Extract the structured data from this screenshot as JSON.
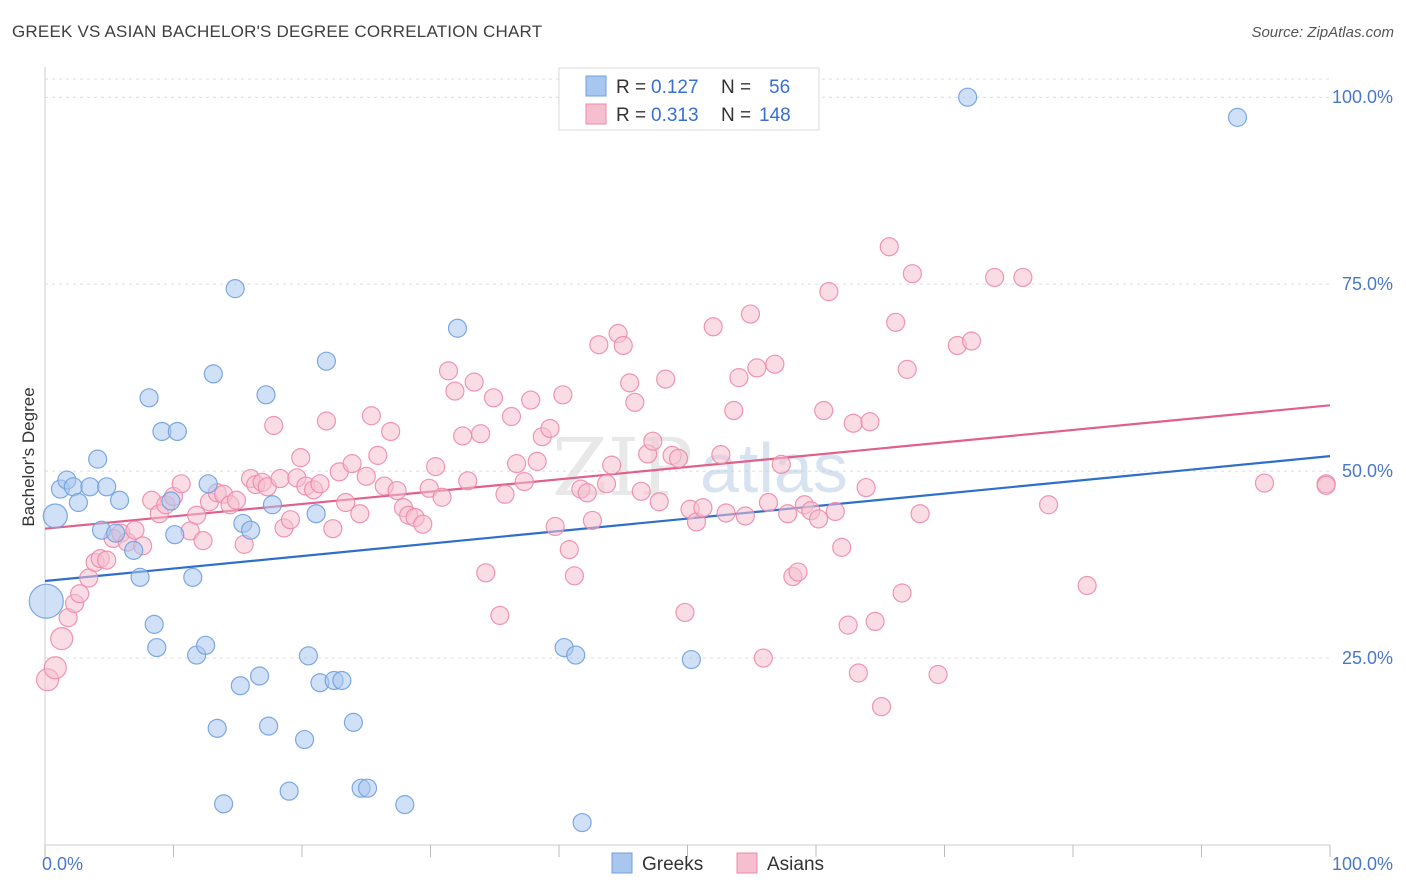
{
  "title": "GREEK VS ASIAN BACHELOR'S DEGREE CORRELATION CHART",
  "source": "Source: ZipAtlas.com",
  "watermark": {
    "zip": "ZIP",
    "atlas": "atlas"
  },
  "chart_data": {
    "type": "scatter",
    "title": "GREEK VS ASIAN BACHELOR'S DEGREE CORRELATION CHART",
    "xlabel": "",
    "ylabel": "Bachelor's Degree",
    "xlim": [
      0,
      100
    ],
    "ylim": [
      0,
      100
    ],
    "x_tick_labels": [
      "0.0%",
      "100.0%"
    ],
    "y_ticks": [
      25,
      50,
      75,
      100
    ],
    "y_tick_labels": [
      "25.0%",
      "50.0%",
      "75.0%",
      "100.0%"
    ],
    "grid": true,
    "legend_placement": "top-center",
    "legend": [
      {
        "r_label": "R =",
        "r_value": "0.127",
        "n_label": "N =",
        "n_value": "56"
      },
      {
        "r_label": "R =",
        "r_value": "0.313",
        "n_label": "N =",
        "n_value": "148"
      }
    ],
    "series": [
      {
        "name": "Greeks",
        "color": "#6fa0e0",
        "fill": "#a9c6ef",
        "line_color": "#2f6fcc",
        "trend": [
          [
            0,
            35.3
          ],
          [
            100,
            52.0
          ]
        ],
        "points": [
          [
            0.1,
            32.6
          ],
          [
            0.8,
            44.0
          ],
          [
            1.2,
            47.6
          ],
          [
            1.7,
            48.8
          ],
          [
            2.2,
            47.9
          ],
          [
            2.6,
            45.8
          ],
          [
            3.5,
            47.9
          ],
          [
            4.1,
            51.6
          ],
          [
            4.8,
            47.9
          ],
          [
            5.8,
            46.1
          ],
          [
            4.4,
            42.1
          ],
          [
            5.5,
            41.7
          ],
          [
            6.9,
            39.4
          ],
          [
            7.4,
            35.8
          ],
          [
            8.1,
            59.8
          ],
          [
            8.5,
            29.5
          ],
          [
            8.7,
            26.4
          ],
          [
            9.1,
            55.3
          ],
          [
            9.8,
            46.0
          ],
          [
            10.3,
            55.3
          ],
          [
            10.1,
            41.5
          ],
          [
            11.5,
            35.8
          ],
          [
            11.8,
            25.4
          ],
          [
            12.5,
            26.7
          ],
          [
            12.7,
            48.3
          ],
          [
            13.1,
            63.0
          ],
          [
            13.4,
            15.6
          ],
          [
            13.9,
            5.5
          ],
          [
            14.8,
            74.4
          ],
          [
            15.2,
            21.3
          ],
          [
            15.4,
            43.0
          ],
          [
            16.0,
            42.1
          ],
          [
            16.7,
            22.6
          ],
          [
            17.2,
            60.2
          ],
          [
            17.4,
            15.9
          ],
          [
            17.7,
            45.5
          ],
          [
            19.0,
            7.2
          ],
          [
            20.2,
            14.1
          ],
          [
            20.5,
            25.3
          ],
          [
            21.1,
            44.3
          ],
          [
            21.4,
            21.7
          ],
          [
            21.9,
            64.7
          ],
          [
            22.5,
            22.0
          ],
          [
            23.1,
            22.0
          ],
          [
            24.0,
            16.4
          ],
          [
            24.6,
            7.6
          ],
          [
            25.1,
            7.6
          ],
          [
            28.0,
            5.4
          ],
          [
            32.1,
            69.1
          ],
          [
            41.8,
            3.0
          ],
          [
            40.4,
            26.4
          ],
          [
            41.3,
            25.4
          ],
          [
            50.3,
            24.8
          ],
          [
            55.4,
            100.0
          ],
          [
            71.8,
            100.0
          ],
          [
            92.8,
            97.3
          ]
        ]
      },
      {
        "name": "Asians",
        "color": "#ee8aab",
        "fill": "#f6bfd0",
        "line_color": "#e0608a",
        "trend": [
          [
            0,
            42.3
          ],
          [
            100,
            58.8
          ]
        ],
        "points": [
          [
            0.2,
            22.1
          ],
          [
            0.8,
            23.7
          ],
          [
            1.3,
            27.6
          ],
          [
            1.8,
            30.4
          ],
          [
            2.3,
            32.3
          ],
          [
            2.7,
            33.6
          ],
          [
            3.4,
            35.7
          ],
          [
            3.9,
            37.8
          ],
          [
            4.3,
            38.3
          ],
          [
            4.8,
            38.1
          ],
          [
            5.3,
            41.0
          ],
          [
            5.9,
            41.7
          ],
          [
            6.4,
            40.5
          ],
          [
            7.0,
            42.1
          ],
          [
            7.6,
            40.0
          ],
          [
            8.3,
            46.1
          ],
          [
            8.9,
            44.3
          ],
          [
            9.4,
            45.5
          ],
          [
            10.0,
            46.6
          ],
          [
            10.6,
            48.3
          ],
          [
            11.3,
            42.0
          ],
          [
            11.8,
            44.1
          ],
          [
            12.3,
            40.7
          ],
          [
            12.8,
            45.9
          ],
          [
            13.4,
            47.1
          ],
          [
            13.9,
            46.9
          ],
          [
            14.4,
            45.5
          ],
          [
            14.9,
            46.1
          ],
          [
            15.5,
            40.2
          ],
          [
            16.0,
            49.0
          ],
          [
            16.4,
            48.2
          ],
          [
            16.9,
            48.5
          ],
          [
            17.3,
            47.9
          ],
          [
            17.8,
            56.1
          ],
          [
            18.3,
            49.0
          ],
          [
            18.6,
            42.4
          ],
          [
            19.1,
            43.5
          ],
          [
            19.6,
            49.1
          ],
          [
            19.9,
            51.8
          ],
          [
            20.3,
            48.0
          ],
          [
            20.9,
            47.5
          ],
          [
            21.4,
            48.3
          ],
          [
            21.9,
            56.7
          ],
          [
            22.4,
            42.3
          ],
          [
            22.9,
            49.9
          ],
          [
            23.4,
            45.8
          ],
          [
            23.9,
            51.0
          ],
          [
            24.5,
            44.3
          ],
          [
            25.0,
            49.3
          ],
          [
            25.4,
            57.4
          ],
          [
            25.9,
            52.1
          ],
          [
            26.4,
            48.0
          ],
          [
            26.9,
            55.3
          ],
          [
            27.4,
            47.4
          ],
          [
            27.9,
            45.1
          ],
          [
            28.3,
            44.1
          ],
          [
            28.8,
            43.8
          ],
          [
            29.4,
            42.9
          ],
          [
            29.9,
            47.7
          ],
          [
            30.4,
            50.6
          ],
          [
            30.9,
            46.5
          ],
          [
            31.4,
            63.4
          ],
          [
            31.9,
            60.7
          ],
          [
            32.5,
            54.7
          ],
          [
            32.9,
            48.7
          ],
          [
            33.4,
            61.9
          ],
          [
            33.9,
            55.0
          ],
          [
            34.3,
            36.4
          ],
          [
            34.9,
            59.8
          ],
          [
            35.4,
            30.7
          ],
          [
            35.8,
            46.9
          ],
          [
            36.3,
            57.3
          ],
          [
            36.7,
            51.0
          ],
          [
            37.3,
            48.6
          ],
          [
            37.8,
            59.5
          ],
          [
            38.3,
            51.3
          ],
          [
            38.7,
            54.6
          ],
          [
            39.3,
            55.7
          ],
          [
            39.7,
            42.6
          ],
          [
            40.3,
            60.2
          ],
          [
            40.8,
            39.5
          ],
          [
            41.2,
            36.0
          ],
          [
            41.7,
            47.6
          ],
          [
            42.2,
            47.1
          ],
          [
            42.6,
            43.4
          ],
          [
            43.1,
            66.9
          ],
          [
            43.7,
            48.3
          ],
          [
            44.1,
            50.8
          ],
          [
            44.6,
            68.4
          ],
          [
            45.0,
            66.8
          ],
          [
            45.5,
            61.8
          ],
          [
            45.9,
            59.2
          ],
          [
            46.4,
            47.3
          ],
          [
            46.9,
            52.3
          ],
          [
            47.3,
            54.0
          ],
          [
            47.8,
            45.9
          ],
          [
            48.3,
            62.3
          ],
          [
            48.8,
            52.1
          ],
          [
            49.3,
            51.7
          ],
          [
            49.8,
            31.1
          ],
          [
            50.2,
            44.9
          ],
          [
            50.7,
            43.2
          ],
          [
            51.2,
            45.1
          ],
          [
            52.0,
            69.3
          ],
          [
            52.6,
            52.2
          ],
          [
            53.0,
            44.4
          ],
          [
            53.6,
            58.1
          ],
          [
            54.0,
            62.5
          ],
          [
            54.5,
            44.0
          ],
          [
            54.9,
            71.0
          ],
          [
            55.4,
            63.8
          ],
          [
            55.9,
            25.0
          ],
          [
            56.3,
            45.8
          ],
          [
            56.8,
            64.3
          ],
          [
            57.3,
            50.9
          ],
          [
            57.8,
            44.3
          ],
          [
            58.2,
            35.9
          ],
          [
            58.6,
            36.5
          ],
          [
            59.1,
            45.5
          ],
          [
            59.6,
            44.7
          ],
          [
            60.2,
            43.6
          ],
          [
            60.6,
            58.1
          ],
          [
            61.0,
            74.0
          ],
          [
            61.5,
            44.6
          ],
          [
            62.0,
            39.8
          ],
          [
            62.5,
            29.4
          ],
          [
            62.9,
            56.4
          ],
          [
            63.3,
            23.0
          ],
          [
            63.9,
            47.8
          ],
          [
            64.2,
            56.6
          ],
          [
            64.6,
            29.9
          ],
          [
            65.1,
            18.5
          ],
          [
            65.7,
            80.0
          ],
          [
            66.2,
            69.9
          ],
          [
            66.7,
            33.7
          ],
          [
            67.1,
            63.6
          ],
          [
            67.5,
            76.4
          ],
          [
            68.1,
            44.3
          ],
          [
            69.5,
            22.8
          ],
          [
            71.0,
            66.8
          ],
          [
            72.1,
            67.4
          ],
          [
            73.9,
            75.9
          ],
          [
            76.1,
            75.9
          ],
          [
            78.1,
            45.5
          ],
          [
            81.1,
            34.7
          ],
          [
            94.9,
            48.4
          ],
          [
            99.7,
            48.3
          ],
          [
            99.7,
            48.1
          ]
        ]
      }
    ]
  }
}
